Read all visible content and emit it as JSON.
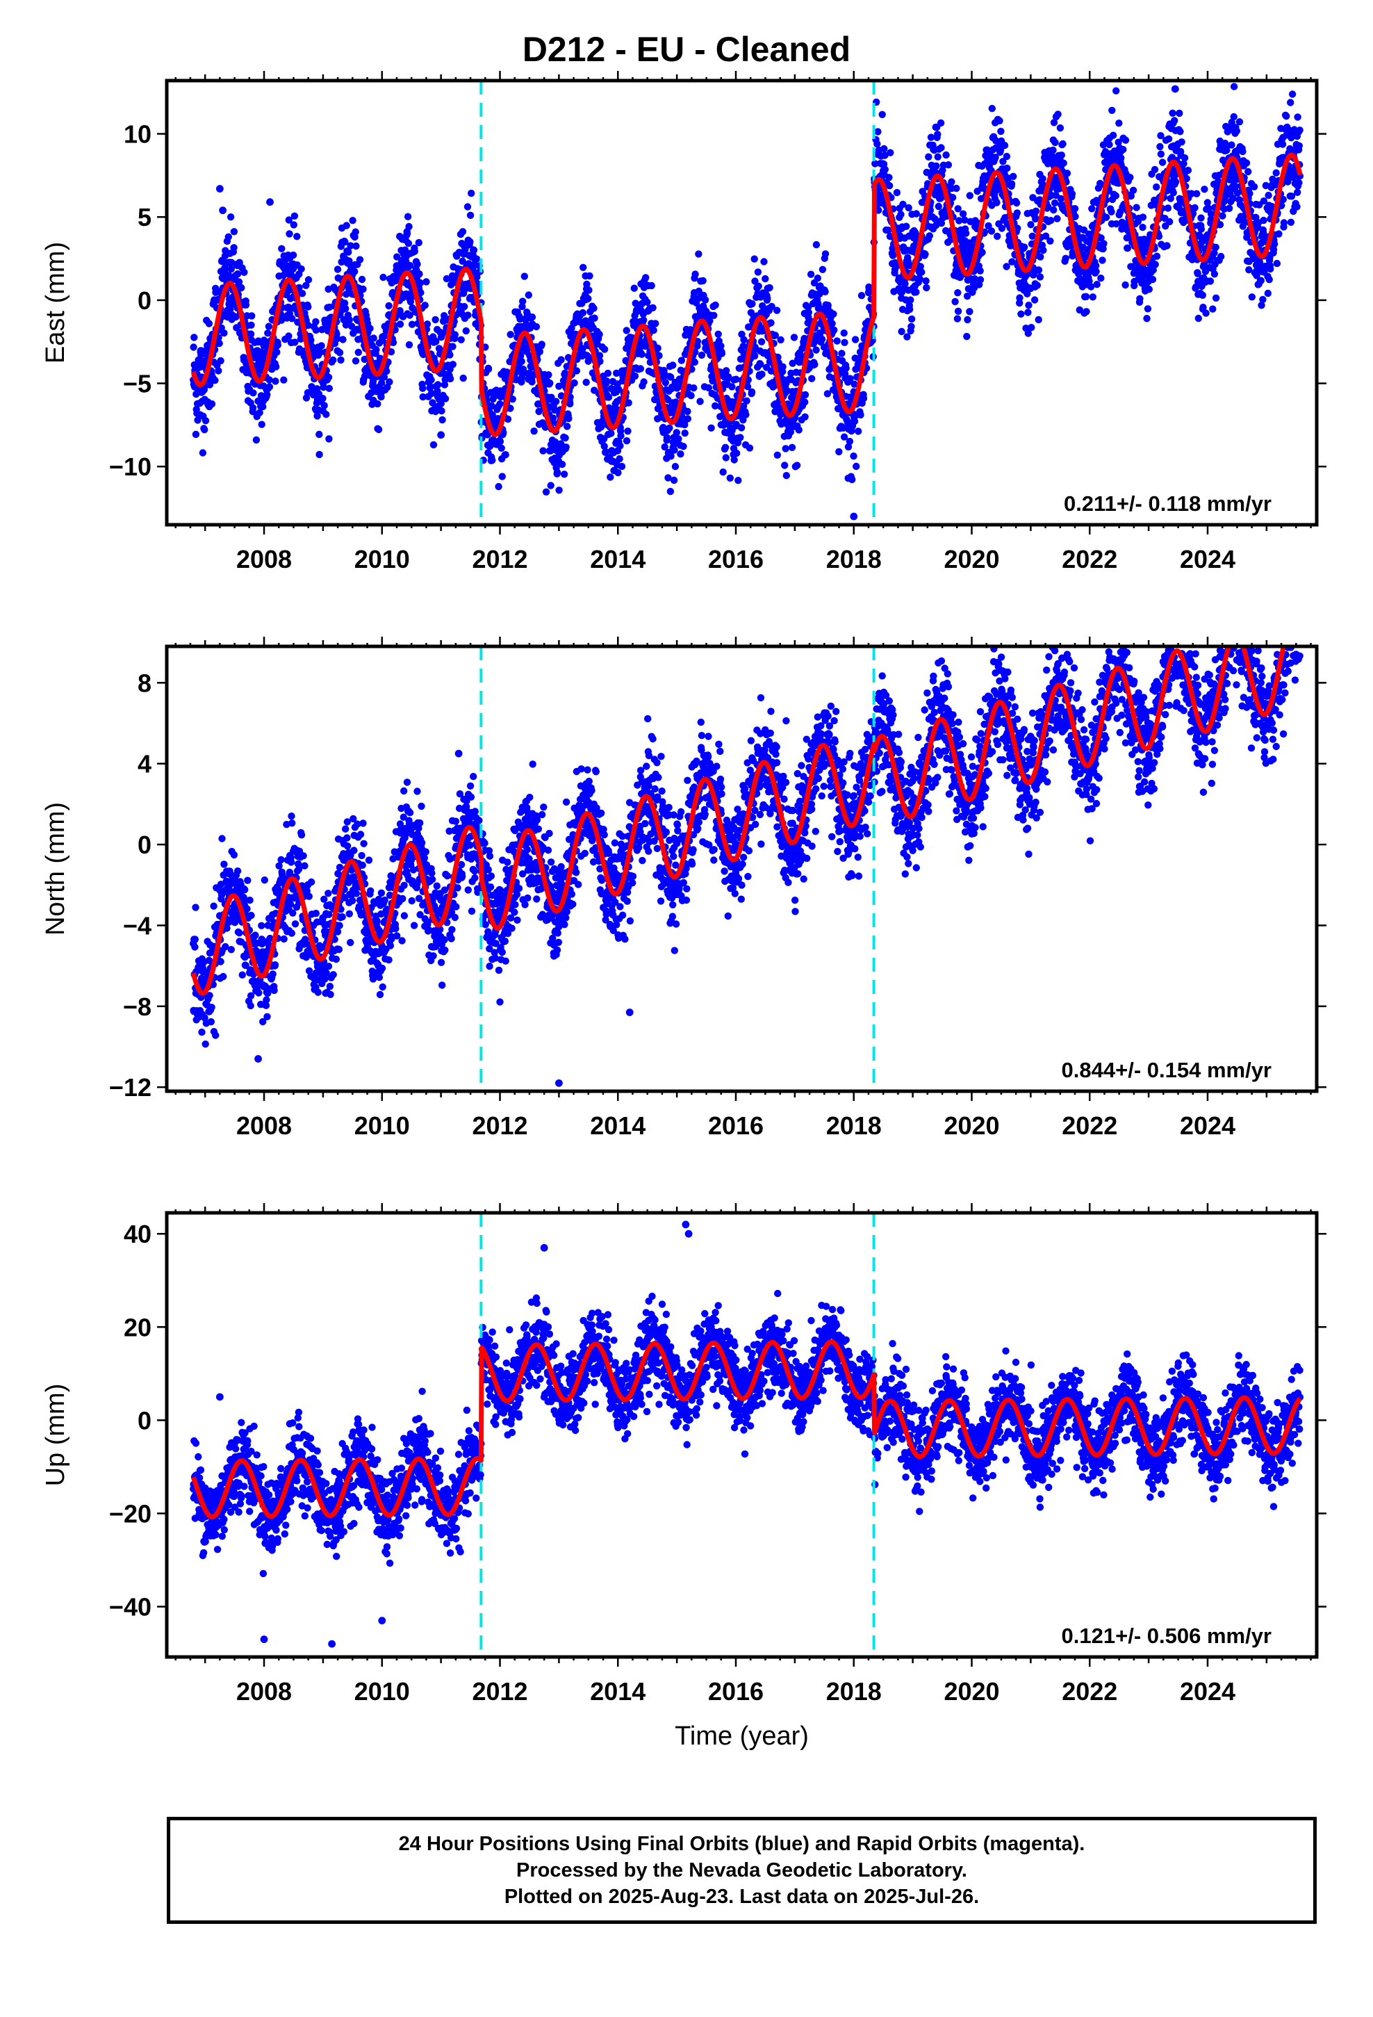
{
  "page": {
    "title": "D212  - EU - Cleaned",
    "footer": {
      "line1": "24 Hour Positions Using Final Orbits (blue) and Rapid Orbits (magenta).",
      "line2": "Processed by the Nevada Geodetic Laboratory.",
      "line3": "Plotted on 2025-Aug-23. Last data on 2025-Jul-26."
    }
  },
  "colors": {
    "final_orbits": "#0000ff",
    "model_fit": "#ff0000",
    "offsets": "#00e5e5",
    "frame": "#000000"
  },
  "chart_data": [
    {
      "type": "scatter",
      "panel": "east",
      "ylabel": "East (mm)",
      "xlabel": "",
      "xlim": [
        2006.35,
        2025.85
      ],
      "ylim": [
        -13.5,
        13.2
      ],
      "xticks": [
        "2008",
        "2010",
        "2012",
        "2014",
        "2016",
        "2018",
        "2020",
        "2022",
        "2024"
      ],
      "yticks": [
        "10",
        "5",
        "0",
        "−5",
        "−10"
      ],
      "xtick_values": [
        2008,
        2010,
        2012,
        2014,
        2016,
        2018,
        2020,
        2022,
        2024
      ],
      "ytick_values": [
        10,
        5,
        0,
        -5,
        -10
      ],
      "rate_label": "0.211+/- 0.118 mm/yr",
      "offsets": [
        2011.68,
        2018.34
      ],
      "model_fit": {
        "trend_mm_per_yr": 0.211,
        "annual_amplitude_mm": 3.0,
        "peak_fraction_of_year": 0.42,
        "segments": [
          {
            "from": 2006.8,
            "to": 2011.68,
            "mean": -1.6
          },
          {
            "from": 2011.68,
            "to": 2014.85,
            "mean": -4.8
          },
          {
            "from": 2014.85,
            "to": 2018.34,
            "mean": -4.0
          },
          {
            "from": 2018.34,
            "to": 2025.57,
            "mean": 5.0
          }
        ]
      },
      "observations": {
        "series": "Final Orbits (blue)",
        "time_span": [
          2006.8,
          2025.57
        ],
        "typical_scatter_mm": 1.6,
        "notable_outliers": [
          {
            "x": 2007.25,
            "y": 6.7
          },
          {
            "x": 2007.3,
            "y": 5.4
          },
          {
            "x": 2008.1,
            "y": 5.9
          },
          {
            "x": 2011.0,
            "y": -8.1
          },
          {
            "x": 2018.0,
            "y": -13.0
          },
          {
            "x": 2023.45,
            "y": 12.7
          }
        ]
      }
    },
    {
      "type": "scatter",
      "panel": "north",
      "ylabel": "North (mm)",
      "xlabel": "",
      "xlim": [
        2006.35,
        2025.85
      ],
      "ylim": [
        -12.2,
        9.8
      ],
      "xticks": [
        "2008",
        "2010",
        "2012",
        "2014",
        "2016",
        "2018",
        "2020",
        "2022",
        "2024"
      ],
      "yticks": [
        "8",
        "4",
        "0",
        "−4",
        "−8",
        "−12"
      ],
      "xtick_values": [
        2008,
        2010,
        2012,
        2014,
        2016,
        2018,
        2020,
        2022,
        2024
      ],
      "ytick_values": [
        8,
        4,
        0,
        -4,
        -8,
        -12
      ],
      "rate_label": "0.844+/- 0.154 mm/yr",
      "offsets": [
        2011.68,
        2018.34
      ],
      "model_fit": {
        "trend_mm_per_yr": 0.844,
        "annual_amplitude_mm": 2.2,
        "peak_fraction_of_year": 0.47,
        "segments": [
          {
            "from": 2006.8,
            "to": 2011.68,
            "intercept_at_2006_8": -5.3
          },
          {
            "from": 2011.68,
            "to": 2018.34,
            "intercept_at_2006_8": -6.3
          },
          {
            "from": 2018.34,
            "to": 2025.57,
            "intercept_at_2006_8": -6.7
          }
        ]
      },
      "observations": {
        "series": "Final Orbits (blue)",
        "time_span": [
          2006.8,
          2025.57
        ],
        "typical_scatter_mm": 1.3,
        "notable_outliers": [
          {
            "x": 2007.9,
            "y": -10.6
          },
          {
            "x": 2013.0,
            "y": -11.8
          },
          {
            "x": 2011.3,
            "y": 4.5
          },
          {
            "x": 2025.5,
            "y": 9.4
          },
          {
            "x": 2014.2,
            "y": -8.3
          }
        ]
      }
    },
    {
      "type": "scatter",
      "panel": "up",
      "ylabel": "Up (mm)",
      "xlabel": "Time (year)",
      "xlim": [
        2006.35,
        2025.85
      ],
      "ylim": [
        -50.8,
        44.5
      ],
      "xticks": [
        "2008",
        "2010",
        "2012",
        "2014",
        "2016",
        "2018",
        "2020",
        "2022",
        "2024"
      ],
      "yticks": [
        "40",
        "20",
        "0",
        "−20",
        "−40"
      ],
      "xtick_values": [
        2008,
        2010,
        2012,
        2014,
        2016,
        2018,
        2020,
        2022,
        2024
      ],
      "ytick_values": [
        40,
        20,
        0,
        -20,
        -40
      ],
      "rate_label": "0.121+/- 0.506 mm/yr",
      "offsets": [
        2011.68,
        2018.34
      ],
      "model_fit": {
        "trend_mm_per_yr": 0.121,
        "annual_amplitude_mm": 6.0,
        "peak_fraction_of_year": 0.62,
        "segments": [
          {
            "from": 2006.8,
            "to": 2011.68,
            "mean": -14.5
          },
          {
            "from": 2011.68,
            "to": 2018.34,
            "mean": 10.5
          },
          {
            "from": 2018.34,
            "to": 2025.57,
            "mean": -1.5
          }
        ]
      },
      "observations": {
        "series": "Final Orbits (blue)",
        "time_span": [
          2006.8,
          2025.57
        ],
        "typical_scatter_mm": 4.2,
        "notable_outliers": [
          {
            "x": 2007.25,
            "y": 5.0
          },
          {
            "x": 2008.0,
            "y": -47.0
          },
          {
            "x": 2009.15,
            "y": -48.0
          },
          {
            "x": 2010.0,
            "y": -43.0
          },
          {
            "x": 2012.75,
            "y": 37.0
          },
          {
            "x": 2015.15,
            "y": 42.0
          },
          {
            "x": 2015.2,
            "y": 40.0
          }
        ]
      }
    }
  ]
}
